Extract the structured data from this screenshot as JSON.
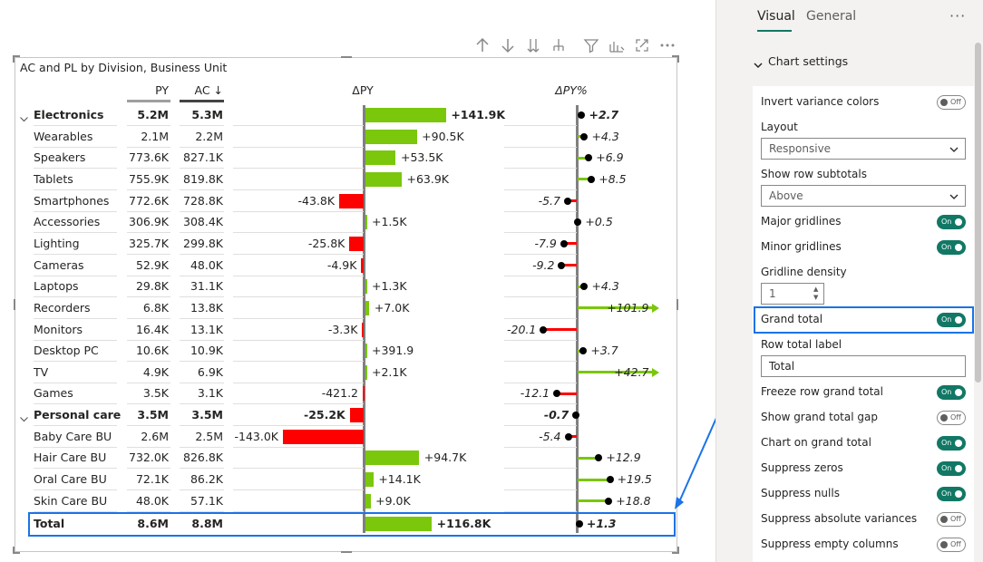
{
  "toolbar": {
    "icons": [
      "arrow-up-icon",
      "arrow-down-icon",
      "expand-down-icon",
      "drill-hierarchy-icon",
      "filter-icon",
      "analytics-icon",
      "focus-mode-icon",
      "more-options-icon"
    ]
  },
  "visual": {
    "title": "AC and PL by Division, Business Unit",
    "headers": {
      "py": "PY",
      "ac": "AC ↓",
      "delta_py": "ΔPY",
      "delta_py_pct": "ΔPY%"
    }
  },
  "chart_data": {
    "type": "table",
    "columns": [
      "PY",
      "AC",
      "ΔPY",
      "ΔPY%"
    ],
    "rows": [
      {
        "label": "Electronics",
        "level": 0,
        "bold": true,
        "expanded": true,
        "py": "5.2M",
        "ac": "5.3M",
        "dpy": 141.9,
        "dpy_label": "+141.9K",
        "dpct": 2.7,
        "dpct_label": "+2.7"
      },
      {
        "label": "Wearables",
        "level": 1,
        "py": "2.1M",
        "ac": "2.2M",
        "dpy": 90.5,
        "dpy_label": "+90.5K",
        "dpct": 4.3,
        "dpct_label": "+4.3"
      },
      {
        "label": "Speakers",
        "level": 1,
        "py": "773.6K",
        "ac": "827.1K",
        "dpy": 53.5,
        "dpy_label": "+53.5K",
        "dpct": 6.9,
        "dpct_label": "+6.9"
      },
      {
        "label": "Tablets",
        "level": 1,
        "py": "755.9K",
        "ac": "819.8K",
        "dpy": 63.9,
        "dpy_label": "+63.9K",
        "dpct": 8.5,
        "dpct_label": "+8.5"
      },
      {
        "label": "Smartphones",
        "level": 1,
        "py": "772.6K",
        "ac": "728.8K",
        "dpy": -43.8,
        "dpy_label": "-43.8K",
        "dpct": -5.7,
        "dpct_label": "-5.7"
      },
      {
        "label": "Accessories",
        "level": 1,
        "py": "306.9K",
        "ac": "308.4K",
        "dpy": 1.5,
        "dpy_label": "+1.5K",
        "dpct": 0.5,
        "dpct_label": "+0.5"
      },
      {
        "label": "Lighting",
        "level": 1,
        "py": "325.7K",
        "ac": "299.8K",
        "dpy": -25.8,
        "dpy_label": "-25.8K",
        "dpct": -7.9,
        "dpct_label": "-7.9"
      },
      {
        "label": "Cameras",
        "level": 1,
        "py": "52.9K",
        "ac": "48.0K",
        "dpy": -4.9,
        "dpy_label": "-4.9K",
        "dpct": -9.2,
        "dpct_label": "-9.2"
      },
      {
        "label": "Laptops",
        "level": 1,
        "py": "29.8K",
        "ac": "31.1K",
        "dpy": 1.3,
        "dpy_label": "+1.3K",
        "dpct": 4.3,
        "dpct_label": "+4.3"
      },
      {
        "label": "Recorders",
        "level": 1,
        "py": "6.8K",
        "ac": "13.8K",
        "dpy": 7.0,
        "dpy_label": "+7.0K",
        "dpct": 101.9,
        "dpct_label": "+101.9",
        "dpct_clipped": true
      },
      {
        "label": "Monitors",
        "level": 1,
        "py": "16.4K",
        "ac": "13.1K",
        "dpy": -3.3,
        "dpy_label": "-3.3K",
        "dpct": -20.1,
        "dpct_label": "-20.1"
      },
      {
        "label": "Desktop PC",
        "level": 1,
        "py": "10.6K",
        "ac": "10.9K",
        "dpy": 0.3919,
        "dpy_label": "+391.9",
        "dpct": 3.7,
        "dpct_label": "+3.7"
      },
      {
        "label": "TV",
        "level": 1,
        "py": "4.9K",
        "ac": "6.9K",
        "dpy": 2.1,
        "dpy_label": "+2.1K",
        "dpct": 42.7,
        "dpct_label": "+42.7",
        "dpct_clipped": true
      },
      {
        "label": "Games",
        "level": 1,
        "py": "3.5K",
        "ac": "3.1K",
        "dpy": -0.4212,
        "dpy_label": "-421.2",
        "dpct": -12.1,
        "dpct_label": "-12.1"
      },
      {
        "label": "Personal care",
        "level": 0,
        "bold": true,
        "expanded": true,
        "py": "3.5M",
        "ac": "3.5M",
        "dpy": -25.2,
        "dpy_label": "-25.2K",
        "dpct": -0.7,
        "dpct_label": "-0.7"
      },
      {
        "label": "Baby Care BU",
        "level": 1,
        "py": "2.6M",
        "ac": "2.5M",
        "dpy": -143.0,
        "dpy_label": "-143.0K",
        "dpct": -5.4,
        "dpct_label": "-5.4"
      },
      {
        "label": "Hair Care BU",
        "level": 1,
        "py": "732.0K",
        "ac": "826.8K",
        "dpy": 94.7,
        "dpy_label": "+94.7K",
        "dpct": 12.9,
        "dpct_label": "+12.9"
      },
      {
        "label": "Oral Care BU",
        "level": 1,
        "py": "72.1K",
        "ac": "86.2K",
        "dpy": 14.1,
        "dpy_label": "+14.1K",
        "dpct": 19.5,
        "dpct_label": "+19.5"
      },
      {
        "label": "Skin Care BU",
        "level": 1,
        "py": "48.0K",
        "ac": "57.1K",
        "dpy": 9.0,
        "dpy_label": "+9.0K",
        "dpct": 18.8,
        "dpct_label": "+18.8"
      },
      {
        "label": "Total",
        "level": 0,
        "bold": true,
        "total": true,
        "py": "8.6M",
        "ac": "8.8M",
        "dpy": 116.8,
        "dpy_label": "+116.8K",
        "dpct": 1.3,
        "dpct_label": "+1.3"
      }
    ],
    "colors": {
      "positive": "#7ac70c",
      "negative": "#ff0000",
      "axis": "#808080",
      "dot": "#000000"
    }
  },
  "pane": {
    "tabs": [
      {
        "label": "Visual",
        "active": true
      },
      {
        "label": "General",
        "active": false
      }
    ],
    "more": "···",
    "section": "Chart settings",
    "settings": {
      "invert_variance_colors": {
        "label": "Invert variance colors",
        "state": "Off"
      },
      "layout": {
        "label": "Layout",
        "value": "Responsive"
      },
      "show_row_subtotals": {
        "label": "Show row subtotals",
        "value": "Above"
      },
      "major_gridlines": {
        "label": "Major gridlines",
        "state": "On"
      },
      "minor_gridlines": {
        "label": "Minor gridlines",
        "state": "On"
      },
      "gridline_density": {
        "label": "Gridline density",
        "value": "1"
      },
      "grand_total": {
        "label": "Grand total",
        "state": "On"
      },
      "row_total_label": {
        "label": "Row total label",
        "value": "Total"
      },
      "freeze_row_grand_total": {
        "label": "Freeze row grand total",
        "state": "On"
      },
      "show_grand_total_gap": {
        "label": "Show grand total gap",
        "state": "Off"
      },
      "chart_on_grand_total": {
        "label": "Chart on grand total",
        "state": "On"
      },
      "suppress_zeros": {
        "label": "Suppress zeros",
        "state": "On"
      },
      "suppress_nulls": {
        "label": "Suppress nulls",
        "state": "On"
      },
      "suppress_absolute_variances": {
        "label": "Suppress absolute variances",
        "state": "Off"
      },
      "suppress_empty_columns": {
        "label": "Suppress empty columns",
        "state": "Off"
      }
    }
  },
  "accent_color": "#117865",
  "highlight_color": "#1a73e8"
}
